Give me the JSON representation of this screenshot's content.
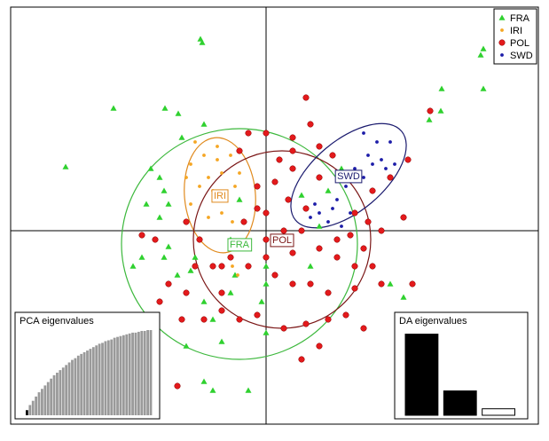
{
  "chart_data": {
    "type": "scatter",
    "xlim": [
      -288,
      307
    ],
    "ylim": [
      -218,
      252
    ],
    "axes_cross": [
      0,
      0
    ],
    "legend": "top-right",
    "series": [
      {
        "name": "FRA",
        "color": "#2fd12f",
        "ellipse_color": "#3cb83c",
        "marker": "triangle",
        "x": [
          -72,
          -74,
          -172,
          -114,
          -99,
          -226,
          242,
          245,
          198,
          245,
          197,
          184,
          -130,
          -115,
          -135,
          -120,
          -110,
          -140,
          -150,
          -115,
          -100,
          -70,
          -60,
          -85,
          -40,
          -5,
          -60,
          -70,
          -20,
          -35,
          -30,
          0,
          50,
          60,
          70,
          85,
          40,
          0,
          155,
          140,
          -90,
          -50,
          0,
          -120,
          -95,
          -70,
          -110,
          -80,
          -40
        ],
        "y": [
          212,
          216,
          138,
          138,
          132,
          72,
          198,
          205,
          160,
          160,
          135,
          125,
          70,
          45,
          30,
          15,
          -18,
          -30,
          -40,
          -30,
          -50,
          -80,
          -100,
          -45,
          -70,
          -80,
          -180,
          -170,
          -180,
          -50,
          35,
          -40,
          -40,
          5,
          45,
          70,
          40,
          -60,
          -75,
          -60,
          -130,
          -125,
          -115,
          60,
          105,
          120,
          30,
          -30,
          -10
        ],
        "ellipse": {
          "cx": -30,
          "cy": -15,
          "rx": 133,
          "ry": 130,
          "angle": 0
        }
      },
      {
        "name": "IRI",
        "color": "#f5a623",
        "ellipse_color": "#e08a1e",
        "marker": "dot",
        "x": [
          -80,
          -70,
          -85,
          -55,
          -40,
          -50,
          -65,
          -75,
          -60,
          -50,
          -65,
          -85,
          -35,
          -30,
          -45,
          -38,
          -90,
          -55,
          -38,
          -32
        ],
        "y": [
          100,
          85,
          75,
          95,
          85,
          65,
          60,
          50,
          45,
          20,
          15,
          30,
          50,
          65,
          35,
          10,
          60,
          80,
          -40,
          -50
        ],
        "ellipse": {
          "cx": -52,
          "cy": 40,
          "rx": 40,
          "ry": 65,
          "angle": 5
        }
      },
      {
        "name": "POL",
        "color": "#e31a1c",
        "ellipse_color": "#7a1515",
        "marker": "circle",
        "x": [
          45,
          0,
          30,
          50,
          60,
          30,
          10,
          -10,
          25,
          45,
          0,
          20,
          40,
          0,
          30,
          60,
          80,
          100,
          110,
          120,
          130,
          100,
          70,
          50,
          30,
          10,
          -20,
          -40,
          -60,
          -80,
          -90,
          -50,
          -30,
          -10,
          20,
          45,
          70,
          90,
          -50,
          -70,
          -95,
          60,
          40,
          110,
          -100,
          165,
          155,
          130,
          115,
          120,
          140,
          100,
          -120,
          -110,
          -125,
          -140,
          -90,
          -75,
          -25,
          -10,
          15,
          30,
          60,
          75,
          -30,
          -20,
          -50,
          0,
          160,
          185,
          80,
          95
        ],
        "y": [
          150,
          110,
          105,
          120,
          95,
          70,
          55,
          50,
          35,
          25,
          20,
          0,
          0,
          -10,
          -25,
          -20,
          -30,
          -40,
          -20,
          -40,
          -60,
          -65,
          -70,
          -60,
          -60,
          -50,
          -40,
          -30,
          -40,
          -40,
          -70,
          -70,
          -100,
          -95,
          -110,
          -105,
          -100,
          -95,
          -90,
          -100,
          -100,
          -130,
          -145,
          -110,
          -175,
          -60,
          15,
          0,
          10,
          45,
          60,
          20,
          -80,
          -60,
          -10,
          -5,
          10,
          -10,
          10,
          25,
          80,
          90,
          60,
          85,
          90,
          110,
          -40,
          -30,
          80,
          135,
          -10,
          -5
        ],
        "ellipse": {
          "cx": 18,
          "cy": -10,
          "rx": 100,
          "ry": 100,
          "angle": 0
        }
      },
      {
        "name": "SWD",
        "color": "#1c1ca8",
        "ellipse_color": "#1a1a6e",
        "marker": "dot",
        "x": [
          110,
          125,
          140,
          115,
          130,
          145,
          120,
          135,
          100,
          90,
          80,
          60,
          50,
          70,
          85,
          55,
          110,
          95,
          75
        ],
        "y": [
          110,
          100,
          100,
          85,
          80,
          75,
          75,
          70,
          70,
          50,
          35,
          20,
          15,
          10,
          5,
          30,
          60,
          20,
          25
        ],
        "ellipse": {
          "cx": 93,
          "cy": 62,
          "rx": 78,
          "ry": 40,
          "angle": 40
        }
      }
    ],
    "insets": [
      {
        "title": "PCA eigenvalues",
        "ylim": [
          0,
          100
        ],
        "color": "#9a9a9a",
        "retained": 1,
        "retained_color": "#000000",
        "values": [
          6,
          12,
          17,
          22,
          27,
          31,
          35,
          39,
          43,
          47,
          50,
          53,
          56,
          59,
          62,
          65,
          67,
          70,
          72,
          74,
          76,
          78,
          80,
          82,
          84,
          85,
          87,
          88,
          89,
          91,
          92,
          93,
          94,
          95,
          96,
          97,
          97,
          98,
          99,
          99,
          100,
          100
        ]
      },
      {
        "title": "DA eigenvalues",
        "ylim": [
          0,
          105
        ],
        "color": "#000000",
        "retained": 2,
        "retained_color": "#000000",
        "other_color": "#ffffff",
        "values": [
          100,
          30,
          8
        ]
      }
    ]
  }
}
